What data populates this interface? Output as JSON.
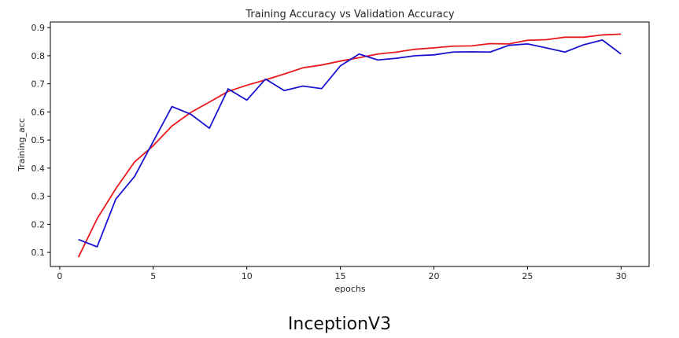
{
  "caption": "InceptionV3",
  "chart_data": {
    "type": "line",
    "title": "Training Accuracy vs Validation Accuracy",
    "xlabel": "epochs",
    "ylabel": "Training_acc",
    "xlim": [
      -0.5,
      31.5
    ],
    "ylim": [
      0.05,
      0.92
    ],
    "x_ticks": [
      0,
      5,
      10,
      15,
      20,
      25,
      30
    ],
    "y_ticks": [
      0.1,
      0.2,
      0.3,
      0.4,
      0.5,
      0.6,
      0.7,
      0.8,
      0.9
    ],
    "legend": false,
    "grid": false,
    "x": [
      1,
      2,
      3,
      4,
      5,
      6,
      7,
      8,
      9,
      10,
      11,
      12,
      13,
      14,
      15,
      16,
      17,
      18,
      19,
      20,
      21,
      22,
      23,
      24,
      25,
      26,
      27,
      28,
      29,
      30
    ],
    "series": [
      {
        "color": "#e8191c",
        "values": [
          0.083,
          0.22,
          0.327,
          0.422,
          0.48,
          0.55,
          0.598,
          0.635,
          0.673,
          0.695,
          0.714,
          0.735,
          0.757,
          0.767,
          0.781,
          0.793,
          0.806,
          0.813,
          0.823,
          0.828,
          0.834,
          0.835,
          0.843,
          0.842,
          0.855,
          0.857,
          0.866,
          0.866,
          0.874,
          0.877
        ]
      },
      {
        "color": "#1a14cf",
        "values": [
          0.146,
          0.12,
          0.29,
          0.37,
          0.495,
          0.619,
          0.592,
          0.542,
          0.682,
          0.642,
          0.717,
          0.676,
          0.692,
          0.683,
          0.764,
          0.806,
          0.785,
          0.791,
          0.8,
          0.803,
          0.813,
          0.814,
          0.813,
          0.837,
          0.842,
          0.828,
          0.813,
          0.839,
          0.856,
          0.806
        ]
      }
    ]
  }
}
